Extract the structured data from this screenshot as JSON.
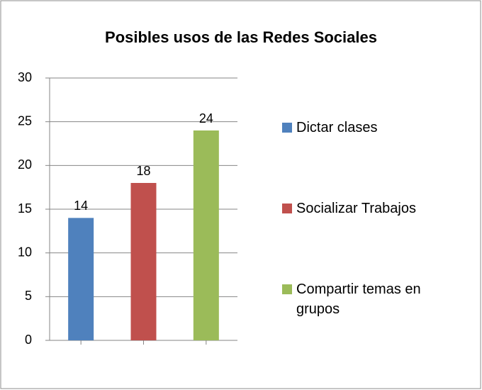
{
  "chart_data": {
    "type": "bar",
    "title": "Posibles usos de las Redes Sociales",
    "categories": [
      null
    ],
    "series": [
      {
        "name": "Dictar clases",
        "color": "#4f81bd",
        "values": [
          14
        ]
      },
      {
        "name": "Socializar Trabajos",
        "color": "#c0504d",
        "values": [
          18
        ]
      },
      {
        "name": "Compartir temas en grupos",
        "color": "#9bbb59",
        "values": [
          24
        ]
      }
    ],
    "ylim": [
      0,
      30
    ],
    "yticks": [
      0,
      5,
      10,
      15,
      20,
      25,
      30
    ],
    "grid": true,
    "legend": "right"
  }
}
